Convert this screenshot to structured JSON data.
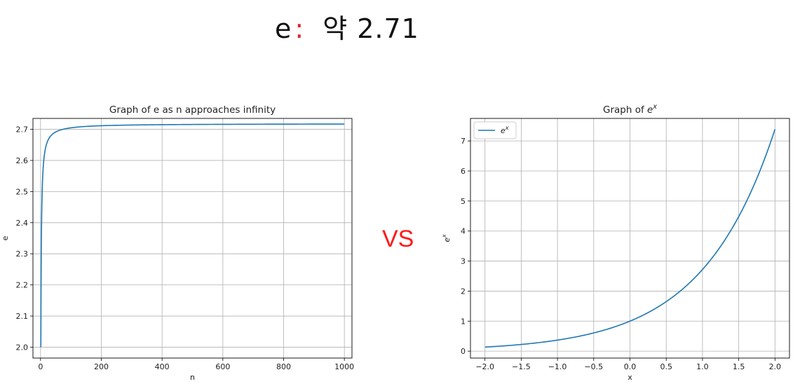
{
  "header": {
    "symbol": "e",
    "colon": ":",
    "approx_text": "약 2.71"
  },
  "vs_label": "VS",
  "chart_data": [
    {
      "type": "line",
      "title": "Graph of e as n approaches infinity",
      "xlabel": "n",
      "ylabel": "e",
      "xlim": [
        -25,
        1025
      ],
      "ylim": [
        1.965,
        2.735
      ],
      "xticks": [
        0,
        200,
        400,
        600,
        800,
        1000
      ],
      "yticks": [
        2.0,
        2.1,
        2.2,
        2.3,
        2.4,
        2.5,
        2.6,
        2.7
      ],
      "grid": true,
      "legend": false,
      "series": [
        {
          "function": "(1+1/n)^n",
          "x": [
            1,
            2,
            3,
            5,
            10,
            20,
            30,
            50,
            75,
            100,
            150,
            200,
            300,
            400,
            500,
            600,
            700,
            800,
            900,
            1000
          ],
          "values": [
            2.0,
            2.25,
            2.37,
            2.488,
            2.594,
            2.653,
            2.674,
            2.692,
            2.7,
            2.705,
            2.709,
            2.712,
            2.714,
            2.715,
            2.716,
            2.716,
            2.716,
            2.717,
            2.717,
            2.717
          ],
          "color": "#1f77b4"
        }
      ]
    },
    {
      "type": "line",
      "title": "Graph of e^x",
      "xlabel": "x",
      "ylabel": "e^x",
      "xlim": [
        -2.2,
        2.2
      ],
      "ylim": [
        -0.23,
        7.75
      ],
      "xticks": [
        -2.0,
        -1.5,
        -1.0,
        -0.5,
        0.0,
        0.5,
        1.0,
        1.5,
        2.0
      ],
      "xtick_labels": [
        "−2.0",
        "−1.5",
        "−1.0",
        "−0.5",
        "0.0",
        "0.5",
        "1.0",
        "1.5",
        "2.0"
      ],
      "yticks": [
        0,
        1,
        2,
        3,
        4,
        5,
        6,
        7
      ],
      "grid": true,
      "legend": "top-left",
      "series": [
        {
          "name": "e^x",
          "function": "exp(x)",
          "x": [
            -2.0,
            -1.5,
            -1.0,
            -0.5,
            0.0,
            0.5,
            1.0,
            1.5,
            2.0
          ],
          "values": [
            0.135,
            0.223,
            0.368,
            0.607,
            1.0,
            1.649,
            2.718,
            4.482,
            7.389
          ],
          "color": "#1f77b4"
        }
      ]
    }
  ]
}
